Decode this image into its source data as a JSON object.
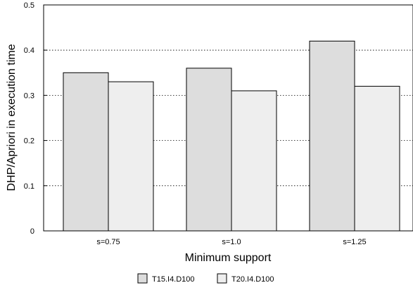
{
  "chart_data": {
    "type": "bar",
    "categories": [
      "s=0.75",
      "s=1.0",
      "s=1.25"
    ],
    "series": [
      {
        "name": "T15.I4.D100",
        "values": [
          0.35,
          0.36,
          0.42
        ],
        "color": "#dddddd"
      },
      {
        "name": "T20.I4.D100",
        "values": [
          0.33,
          0.31,
          0.32
        ],
        "color": "#eeeeee"
      }
    ],
    "xlabel": "Minimum support",
    "ylabel": "DHP/Apriori in execution time",
    "ylim": [
      0,
      0.5
    ],
    "yticks": [
      "0",
      "0.1",
      "0.2",
      "0.3",
      "0.4",
      "0.5"
    ],
    "grid": "horizontal dotted",
    "legend_position": "bottom"
  }
}
